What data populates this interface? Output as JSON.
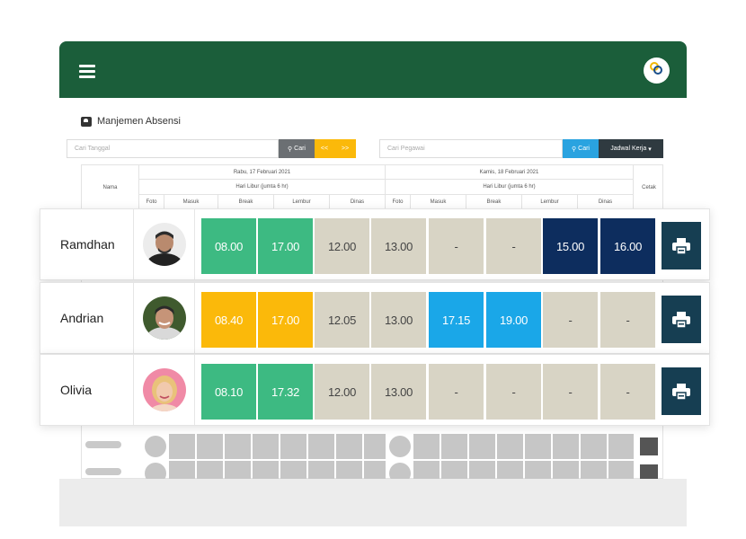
{
  "page": {
    "title": "Manjemen Absensi"
  },
  "toolbar": {
    "left": {
      "date_placeholder": "Cari Tanggal",
      "search_label": "Cari",
      "prev_label": "<<",
      "next_label": ">>"
    },
    "right": {
      "employee_placeholder": "Cari Pegawai",
      "search_label": "Cari",
      "schedule_label": "Jadwal Kerja"
    }
  },
  "grid": {
    "name_header": "Nama",
    "print_header": "Cetak",
    "days": [
      {
        "date": "Rabu, 17 Februari 2021",
        "holiday": "Hari Libur (jumta 6 hr)",
        "columns": [
          "Foto",
          "Masuk",
          "Break",
          "Lembur",
          "Dinas"
        ]
      },
      {
        "date": "Kamis, 18 Februari 2021",
        "holiday": "Hari Libur (jumta 6 hr)",
        "columns": [
          "Foto",
          "Masuk",
          "Break",
          "Lembur",
          "Dinas"
        ]
      }
    ]
  },
  "colors": {
    "header": "#1b5e3a",
    "green": "#3dba82",
    "yellow": "#fbb90a",
    "beige": "#d8d4c5",
    "blue": "#1aa7e8",
    "navy": "#0d2d5e",
    "print": "#163e52"
  },
  "employees": [
    {
      "name": "Ramdhan",
      "cells": [
        {
          "value": "08.00",
          "color": "green"
        },
        {
          "value": "17.00",
          "color": "green"
        },
        {
          "value": "12.00",
          "color": "beige"
        },
        {
          "value": "13.00",
          "color": "beige"
        },
        {
          "value": "-",
          "color": "beige"
        },
        {
          "value": "-",
          "color": "beige"
        },
        {
          "value": "15.00",
          "color": "navy"
        },
        {
          "value": "16.00",
          "color": "navy"
        }
      ]
    },
    {
      "name": "Andrian",
      "cells": [
        {
          "value": "08.40",
          "color": "yellow"
        },
        {
          "value": "17.00",
          "color": "yellow"
        },
        {
          "value": "12.05",
          "color": "beige"
        },
        {
          "value": "13.00",
          "color": "beige"
        },
        {
          "value": "17.15",
          "color": "blue"
        },
        {
          "value": "19.00",
          "color": "blue"
        },
        {
          "value": "-",
          "color": "beige"
        },
        {
          "value": "-",
          "color": "beige"
        }
      ]
    },
    {
      "name": "Olivia",
      "cells": [
        {
          "value": "08.10",
          "color": "green"
        },
        {
          "value": "17.32",
          "color": "green"
        },
        {
          "value": "12.00",
          "color": "beige"
        },
        {
          "value": "13.00",
          "color": "beige"
        },
        {
          "value": "-",
          "color": "beige"
        },
        {
          "value": "-",
          "color": "beige"
        },
        {
          "value": "-",
          "color": "beige"
        },
        {
          "value": "-",
          "color": "beige"
        }
      ]
    }
  ]
}
